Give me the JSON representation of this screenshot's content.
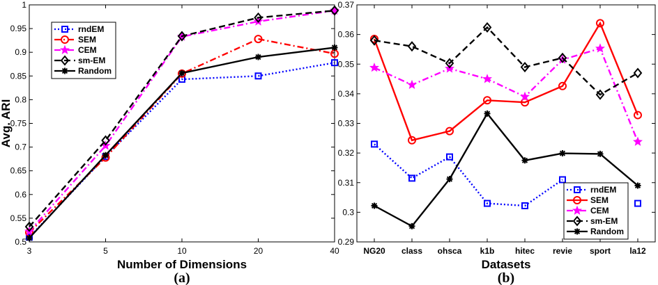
{
  "chart_data": [
    {
      "type": "line",
      "panel_label": "(a)",
      "xlabel": "Number of Dimensions",
      "ylabel": "Avg. ARI",
      "categories": [
        "3",
        "5",
        "10",
        "20",
        "40"
      ],
      "ylim": [
        0.5,
        1.0
      ],
      "yticks": [
        "0.5",
        "0.55",
        "0.6",
        "0.65",
        "0.7",
        "0.75",
        "0.8",
        "0.85",
        "0.9",
        "0.95",
        "1"
      ],
      "grid": false,
      "legend_position": "top-left",
      "series": [
        {
          "name": "rndEM",
          "color": "#0000ff",
          "dash": "dotted",
          "marker": "square",
          "values": [
            0.51,
            0.68,
            0.843,
            0.85,
            0.878
          ]
        },
        {
          "name": "SEM",
          "color": "#ff0000",
          "dash": "dashdot",
          "marker": "circle",
          "values": [
            0.52,
            0.678,
            0.855,
            0.928,
            0.897
          ]
        },
        {
          "name": "CEM",
          "color": "#ff00ff",
          "dash": "dashdot",
          "marker": "star",
          "values": [
            0.522,
            0.703,
            0.933,
            0.965,
            0.988
          ]
        },
        {
          "name": "sm-EM",
          "color": "#000000",
          "dash": "dashed",
          "marker": "diamond",
          "values": [
            0.532,
            0.714,
            0.934,
            0.973,
            0.988
          ]
        },
        {
          "name": "Random",
          "color": "#000000",
          "dash": "solid",
          "marker": "asterisk",
          "values": [
            0.508,
            0.683,
            0.856,
            0.89,
            0.91
          ]
        }
      ]
    },
    {
      "type": "line",
      "panel_label": "(b)",
      "xlabel": "Datasets",
      "ylabel": "",
      "categories": [
        "NG20",
        "class",
        "ohsca",
        "k1b",
        "hitec",
        "revie",
        "sport",
        "la12"
      ],
      "ylim": [
        0.29,
        0.37
      ],
      "yticks": [
        "0.29",
        "0.3",
        "0.31",
        "0.32",
        "0.33",
        "0.34",
        "0.35",
        "0.36",
        "0.37"
      ],
      "grid": false,
      "legend_position": "bottom-right",
      "series": [
        {
          "name": "rndEM",
          "color": "#0000ff",
          "dash": "dotted",
          "marker": "square",
          "values": [
            0.323,
            0.3115,
            0.3187,
            0.303,
            0.3022,
            0.311,
            null,
            0.303
          ]
        },
        {
          "name": "SEM",
          "color": "#ff0000",
          "dash": "solid",
          "marker": "circle",
          "values": [
            0.3585,
            0.3243,
            0.3274,
            0.3378,
            0.3371,
            0.3426,
            0.3638,
            0.3328
          ]
        },
        {
          "name": "CEM",
          "color": "#ff00ff",
          "dash": "dashdot",
          "marker": "star",
          "values": [
            0.3488,
            0.343,
            0.3485,
            0.345,
            0.339,
            0.3515,
            0.3553,
            0.3238
          ]
        },
        {
          "name": "sm-EM",
          "color": "#000000",
          "dash": "dashed",
          "marker": "diamond",
          "values": [
            0.358,
            0.356,
            0.3503,
            0.3624,
            0.349,
            0.3521,
            0.3397,
            0.347
          ]
        },
        {
          "name": "Random",
          "color": "#000000",
          "dash": "solid",
          "marker": "asterisk",
          "values": [
            0.3022,
            0.2953,
            0.3112,
            0.3333,
            0.3175,
            0.3199,
            0.3197,
            0.309
          ]
        }
      ]
    }
  ]
}
